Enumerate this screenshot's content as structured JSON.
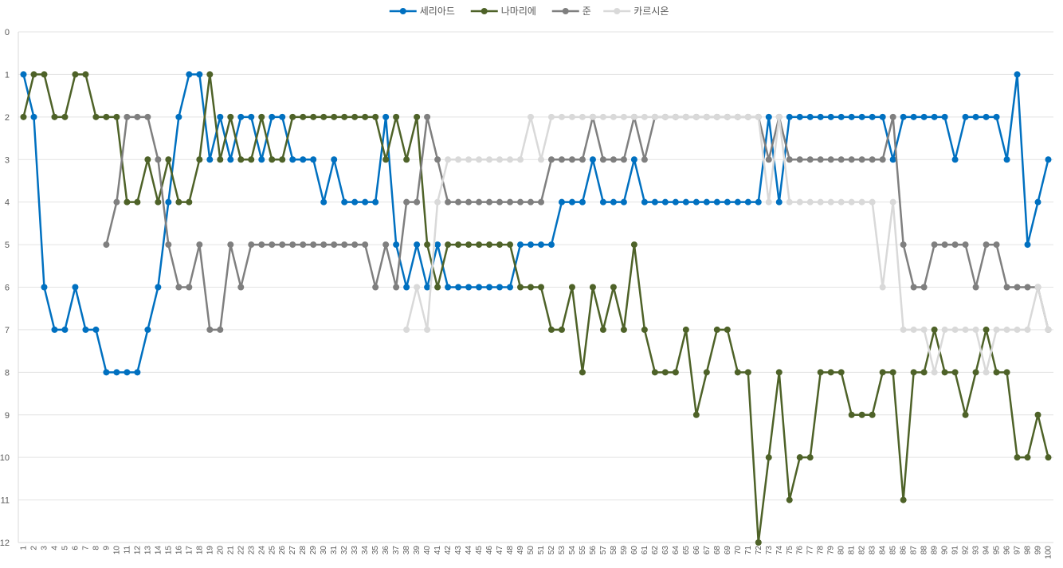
{
  "chart_data": {
    "type": "line",
    "title": "",
    "xlabel": "",
    "ylabel": "",
    "ylim": [
      0,
      12
    ],
    "y_reversed": true,
    "grid": true,
    "legend_position": "top",
    "x": [
      1,
      2,
      3,
      4,
      5,
      6,
      7,
      8,
      9,
      10,
      11,
      12,
      13,
      14,
      15,
      16,
      17,
      18,
      19,
      20,
      21,
      22,
      23,
      24,
      25,
      26,
      27,
      28,
      29,
      30,
      31,
      32,
      33,
      34,
      35,
      36,
      37,
      38,
      39,
      40,
      41,
      42,
      43,
      44,
      45,
      46,
      47,
      48,
      49,
      50,
      51,
      52,
      53,
      54,
      55,
      56,
      57,
      58,
      59,
      60,
      61,
      62,
      63,
      64,
      65,
      66,
      67,
      68,
      69,
      70,
      71,
      72,
      73,
      74,
      75,
      76,
      77,
      78,
      79,
      80,
      81,
      82,
      83,
      84,
      85,
      86,
      87,
      88,
      89,
      90,
      91,
      92,
      93,
      94,
      95,
      96,
      97,
      98,
      99,
      100
    ],
    "series": [
      {
        "name": "세리아드",
        "color": "#0070c0",
        "values": [
          1,
          2,
          6,
          7,
          7,
          6,
          7,
          7,
          8,
          8,
          8,
          8,
          7,
          6,
          4,
          2,
          1,
          1,
          3,
          2,
          3,
          2,
          2,
          3,
          2,
          2,
          3,
          3,
          3,
          4,
          3,
          4,
          4,
          4,
          4,
          2,
          5,
          6,
          5,
          6,
          5,
          6,
          6,
          6,
          6,
          6,
          6,
          6,
          5,
          5,
          5,
          5,
          4,
          4,
          4,
          3,
          4,
          4,
          4,
          3,
          4,
          4,
          4,
          4,
          4,
          4,
          4,
          4,
          4,
          4,
          4,
          4,
          2,
          4,
          2,
          2,
          2,
          2,
          2,
          2,
          2,
          2,
          2,
          2,
          3,
          2,
          2,
          2,
          2,
          2,
          3,
          2,
          2,
          2,
          2,
          3,
          1,
          5,
          4,
          3
        ]
      },
      {
        "name": "나마리에",
        "color": "#4e6228",
        "values": [
          2,
          1,
          1,
          2,
          2,
          1,
          1,
          2,
          2,
          2,
          4,
          4,
          3,
          4,
          3,
          4,
          4,
          3,
          1,
          3,
          2,
          3,
          3,
          2,
          3,
          3,
          2,
          2,
          2,
          2,
          2,
          2,
          2,
          2,
          2,
          3,
          2,
          3,
          2,
          5,
          6,
          5,
          5,
          5,
          5,
          5,
          5,
          5,
          6,
          6,
          6,
          7,
          7,
          6,
          8,
          6,
          7,
          6,
          7,
          5,
          7,
          8,
          8,
          8,
          7,
          9,
          8,
          7,
          7,
          8,
          8,
          12,
          10,
          8,
          11,
          10,
          10,
          8,
          8,
          8,
          9,
          9,
          9,
          8,
          8,
          11,
          8,
          8,
          7,
          8,
          8,
          9,
          8,
          7,
          8,
          8,
          10,
          10,
          9,
          10
        ]
      },
      {
        "name": "준",
        "color": "#7f7f7f",
        "values": [
          null,
          null,
          null,
          null,
          null,
          null,
          null,
          null,
          5,
          4,
          2,
          2,
          2,
          3,
          5,
          6,
          6,
          5,
          7,
          7,
          5,
          6,
          5,
          5,
          5,
          5,
          5,
          5,
          5,
          5,
          5,
          5,
          5,
          5,
          6,
          5,
          6,
          4,
          4,
          2,
          3,
          4,
          4,
          4,
          4,
          4,
          4,
          4,
          4,
          4,
          4,
          3,
          3,
          3,
          3,
          2,
          3,
          3,
          3,
          2,
          3,
          2,
          2,
          2,
          2,
          2,
          2,
          2,
          2,
          2,
          2,
          2,
          3,
          2,
          3,
          3,
          3,
          3,
          3,
          3,
          3,
          3,
          3,
          3,
          2,
          5,
          6,
          6,
          5,
          5,
          5,
          5,
          6,
          5,
          5,
          6,
          6,
          6,
          6,
          7
        ]
      },
      {
        "name": "카르시온",
        "color": "#d9d9d9",
        "values": [
          null,
          null,
          null,
          null,
          null,
          null,
          null,
          null,
          null,
          null,
          null,
          null,
          null,
          null,
          null,
          null,
          null,
          null,
          null,
          null,
          null,
          null,
          null,
          null,
          null,
          null,
          null,
          null,
          null,
          null,
          null,
          null,
          null,
          null,
          null,
          null,
          null,
          7,
          6,
          7,
          4,
          3,
          3,
          3,
          3,
          3,
          3,
          3,
          3,
          2,
          3,
          2,
          2,
          2,
          2,
          2,
          2,
          2,
          2,
          2,
          2,
          2,
          2,
          2,
          2,
          2,
          2,
          2,
          2,
          2,
          2,
          2,
          4,
          2,
          4,
          4,
          4,
          4,
          4,
          4,
          4,
          4,
          4,
          6,
          4,
          7,
          7,
          7,
          8,
          7,
          7,
          7,
          7,
          8,
          7,
          7,
          7,
          7,
          6,
          7
        ]
      }
    ]
  }
}
